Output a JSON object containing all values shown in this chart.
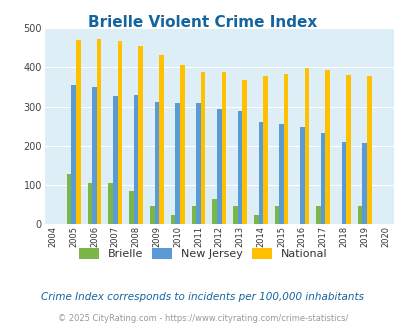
{
  "title": "Brielle Violent Crime Index",
  "years": [
    2004,
    2005,
    2006,
    2007,
    2008,
    2009,
    2010,
    2011,
    2012,
    2013,
    2014,
    2015,
    2016,
    2017,
    2018,
    2019,
    2020
  ],
  "brielle": [
    null,
    128,
    105,
    105,
    85,
    46,
    23,
    47,
    65,
    47,
    23,
    47,
    null,
    47,
    null,
    47,
    null
  ],
  "new_jersey": [
    null,
    355,
    350,
    328,
    330,
    312,
    310,
    310,
    293,
    290,
    262,
    256,
    248,
    232,
    210,
    207,
    null
  ],
  "national": [
    null,
    469,
    473,
    467,
    455,
    432,
    405,
    387,
    387,
    368,
    377,
    383,
    397,
    394,
    380,
    379,
    null
  ],
  "brielle_color": "#7ab648",
  "nj_color": "#5b9bd5",
  "national_color": "#ffc000",
  "plot_bg": "#ddeef6",
  "title_color": "#1464a0",
  "ylim": [
    0,
    500
  ],
  "yticks": [
    0,
    100,
    200,
    300,
    400,
    500
  ],
  "subtitle": "Crime Index corresponds to incidents per 100,000 inhabitants",
  "footer": "© 2025 CityRating.com - https://www.cityrating.com/crime-statistics/",
  "legend_labels": [
    "Brielle",
    "New Jersey",
    "National"
  ]
}
